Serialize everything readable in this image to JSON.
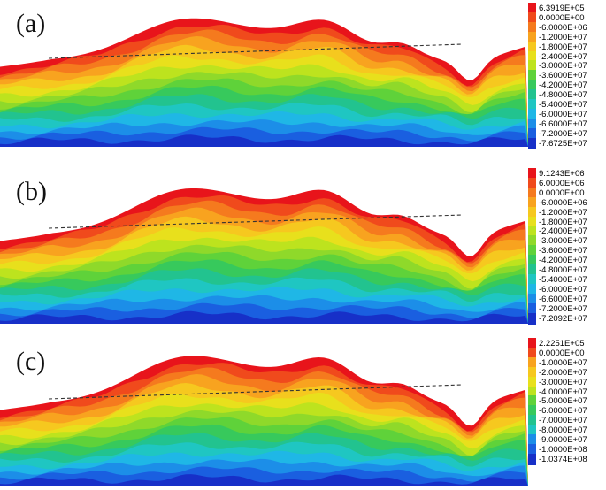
{
  "panels": [
    {
      "label": "(a)",
      "legend": [
        "6.3919E+05",
        "0.0000E+00",
        "-6.0000E+06",
        "-1.2000E+07",
        "-1.8000E+07",
        "-2.4000E+07",
        "-3.0000E+07",
        "-3.6000E+07",
        "-4.2000E+07",
        "-4.8000E+07",
        "-5.4000E+07",
        "-6.0000E+07",
        "-6.6000E+07",
        "-7.2000E+07",
        "-7.6725E+07"
      ]
    },
    {
      "label": "(b)",
      "legend": [
        "9.1243E+06",
        "6.0000E+06",
        "0.0000E+00",
        "-6.0000E+06",
        "-1.2000E+07",
        "-1.8000E+07",
        "-2.4000E+07",
        "-3.0000E+07",
        "-3.6000E+07",
        "-4.2000E+07",
        "-4.8000E+07",
        "-5.4000E+07",
        "-6.0000E+07",
        "-6.6000E+07",
        "-7.2000E+07",
        "-7.2092E+07"
      ]
    },
    {
      "label": "(c)",
      "legend": [
        "2.2251E+05",
        "0.0000E+00",
        "-1.0000E+07",
        "-2.0000E+07",
        "-3.0000E+07",
        "-4.0000E+07",
        "-5.0000E+07",
        "-6.0000E+07",
        "-7.0000E+07",
        "-8.0000E+07",
        "-9.0000E+07",
        "-1.0000E+08",
        "-1.0374E+08"
      ]
    }
  ],
  "colors": {
    "scale": [
      "#e8141b",
      "#f04a1c",
      "#f57a1e",
      "#f8a31f",
      "#f6c81f",
      "#e8e01c",
      "#bde31e",
      "#8fd92a",
      "#5fd23a",
      "#37c95c",
      "#22c38f",
      "#1fc6c2",
      "#1fb7e6",
      "#1c8ee8",
      "#1a5fe0",
      "#1730c8"
    ]
  }
}
